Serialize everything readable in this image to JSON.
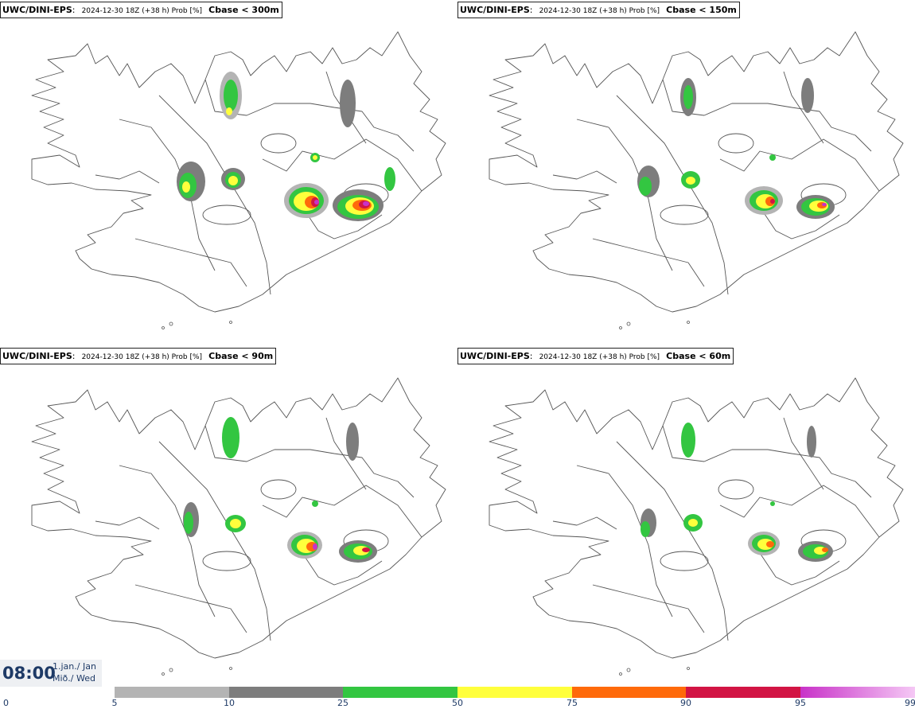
{
  "panels": [
    {
      "model": "UWC/DINI-EPS",
      "run": "2024-12-30 18Z (+38 h) Prob [%]",
      "quantity": "Cbase < 300m"
    },
    {
      "model": "UWC/DINI-EPS",
      "run": "2024-12-30 18Z (+38 h) Prob [%]",
      "quantity": "Cbase < 150m"
    },
    {
      "model": "UWC/DINI-EPS",
      "run": "2024-12-30 18Z (+38 h) Prob [%]",
      "quantity": "Cbase < 90m"
    },
    {
      "model": "UWC/DINI-EPS",
      "run": "2024-12-30 18Z (+38 h) Prob [%]",
      "quantity": "Cbase < 60m"
    }
  ],
  "valid_time": {
    "time": "08:00",
    "date": "1.jan./ Jan",
    "weekday": "Mið./ Wed"
  },
  "legend": {
    "ticks": [
      "0",
      "5",
      "10",
      "25",
      "50",
      "75",
      "90",
      "95",
      "99"
    ],
    "colors": [
      "#b4b4b4",
      "#7d7d7d",
      "#33c641",
      "#ffff3c",
      "#ff6a0a",
      "#d21444",
      "#c832c8",
      "#f0aaf0"
    ]
  }
}
